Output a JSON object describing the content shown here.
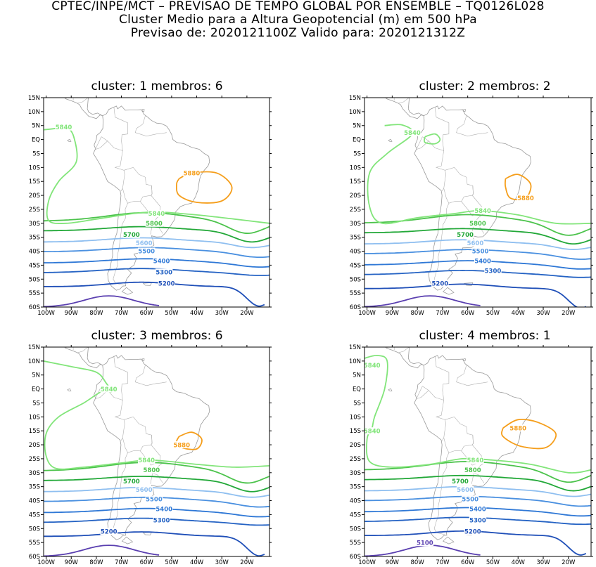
{
  "header": {
    "line1": "CPTEC/INPE/MCT – PREVISAO DE TEMPO GLOBAL POR ENSEMBLE – TQ0126L028",
    "line2": "Cluster Medio para a Altura Geopotencial (m) em 500 hPa",
    "line3": "Previsao de: 2020121100Z   Valido para: 2020121312Z"
  },
  "lat_labels": [
    "15N",
    "10N",
    "5N",
    "EQ",
    "5S",
    "10S",
    "15S",
    "20S",
    "25S",
    "30S",
    "35S",
    "40S",
    "45S",
    "50S",
    "55S",
    "60S"
  ],
  "lon_labels": [
    "100W",
    "90W",
    "80W",
    "70W",
    "60W",
    "50W",
    "40W",
    "30W",
    "20W"
  ],
  "colors": {
    "5100": "#5a3fb0",
    "5200": "#1f4fb8",
    "5300": "#2563c4",
    "5400": "#2f78d6",
    "5500": "#4a90e0",
    "5600": "#8fbff0",
    "5700": "#22a838",
    "5800": "#4cc34c",
    "5840": "#82e57a",
    "5880": "#f59e1b",
    "coast": "#9a9a9a"
  },
  "panels": [
    {
      "title": "cluster: 1   membros: 6",
      "labels": [
        {
          "text": "5840",
          "level": "5840",
          "lon": -93,
          "lat": 4.5
        },
        {
          "text": "5880",
          "level": "5880",
          "lon": -42,
          "lat": -12
        },
        {
          "text": "5840",
          "level": "5840",
          "lon": -56,
          "lat": -26.5
        },
        {
          "text": "5800",
          "level": "5800",
          "lon": -57,
          "lat": -30
        },
        {
          "text": "5700",
          "level": "5700",
          "lon": -66,
          "lat": -34
        },
        {
          "text": "5600",
          "level": "5600",
          "lon": -61,
          "lat": -37
        },
        {
          "text": "5500",
          "level": "5500",
          "lon": -60,
          "lat": -40
        },
        {
          "text": "5400",
          "level": "5400",
          "lon": -54,
          "lat": -43.5
        },
        {
          "text": "5300",
          "level": "5300",
          "lon": -53,
          "lat": -47.5
        },
        {
          "text": "5200",
          "level": "5200",
          "lon": -52,
          "lat": -51.5
        }
      ]
    },
    {
      "title": "cluster: 2   membros: 2",
      "labels": [
        {
          "text": "5840",
          "level": "5840",
          "lon": -82,
          "lat": 2.5
        },
        {
          "text": "5880",
          "level": "5880",
          "lon": -37,
          "lat": -21
        },
        {
          "text": "5840",
          "level": "5840",
          "lon": -54,
          "lat": -25.5
        },
        {
          "text": "5800",
          "level": "5800",
          "lon": -56,
          "lat": -30
        },
        {
          "text": "5700",
          "level": "5700",
          "lon": -61,
          "lat": -34
        },
        {
          "text": "5600",
          "level": "5600",
          "lon": -57,
          "lat": -37
        },
        {
          "text": "5500",
          "level": "5500",
          "lon": -55,
          "lat": -40
        },
        {
          "text": "5400",
          "level": "5400",
          "lon": -54,
          "lat": -43.5
        },
        {
          "text": "5300",
          "level": "5300",
          "lon": -50,
          "lat": -47
        },
        {
          "text": "5200",
          "level": "5200",
          "lon": -71,
          "lat": -51.5
        }
      ]
    },
    {
      "title": "cluster: 3   membros: 6",
      "labels": [
        {
          "text": "5840",
          "level": "5840",
          "lon": -75,
          "lat": 0
        },
        {
          "text": "5880",
          "level": "5880",
          "lon": -46,
          "lat": -20
        },
        {
          "text": "5840",
          "level": "5840",
          "lon": -60,
          "lat": -25.5
        },
        {
          "text": "5800",
          "level": "5800",
          "lon": -58,
          "lat": -29
        },
        {
          "text": "5700",
          "level": "5700",
          "lon": -66,
          "lat": -33
        },
        {
          "text": "5600",
          "level": "5600",
          "lon": -61,
          "lat": -36
        },
        {
          "text": "5500",
          "level": "5500",
          "lon": -57,
          "lat": -39.5
        },
        {
          "text": "5400",
          "level": "5400",
          "lon": -53,
          "lat": -43
        },
        {
          "text": "5300",
          "level": "5300",
          "lon": -54,
          "lat": -47
        },
        {
          "text": "5200",
          "level": "5200",
          "lon": -75,
          "lat": -51
        }
      ]
    },
    {
      "title": "cluster: 4   membros: 1",
      "labels": [
        {
          "text": "5840",
          "level": "5840",
          "lon": -98,
          "lat": 8.5
        },
        {
          "text": "5840",
          "level": "5840",
          "lon": -98,
          "lat": -15
        },
        {
          "text": "5880",
          "level": "5880",
          "lon": -40,
          "lat": -14
        },
        {
          "text": "5840",
          "level": "5840",
          "lon": -57,
          "lat": -25.5
        },
        {
          "text": "5800",
          "level": "5800",
          "lon": -58,
          "lat": -29
        },
        {
          "text": "5700",
          "level": "5700",
          "lon": -63,
          "lat": -33
        },
        {
          "text": "5600",
          "level": "5600",
          "lon": -61,
          "lat": -36
        },
        {
          "text": "5500",
          "level": "5500",
          "lon": -59,
          "lat": -39.5
        },
        {
          "text": "5400",
          "level": "5400",
          "lon": -56,
          "lat": -43
        },
        {
          "text": "5300",
          "level": "5300",
          "lon": -56,
          "lat": -47
        },
        {
          "text": "5200",
          "level": "5200",
          "lon": -58,
          "lat": -51
        },
        {
          "text": "5100",
          "level": "5100",
          "lon": -77,
          "lat": -55
        }
      ]
    }
  ]
}
